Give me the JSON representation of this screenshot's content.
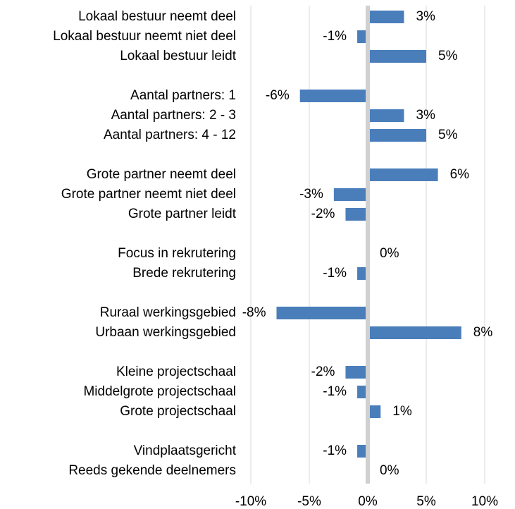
{
  "chart_data": {
    "type": "bar",
    "orientation": "horizontal",
    "categories": [
      "Lokaal bestuur neemt deel",
      "Lokaal bestuur neemt niet deel",
      "Lokaal bestuur leidt",
      null,
      "Aantal partners: 1",
      "Aantal partners: 2 - 3",
      "Aantal partners: 4 - 12",
      null,
      "Grote partner neemt deel",
      "Grote partner neemt niet deel",
      "Grote partner leidt",
      null,
      "Focus in rekrutering",
      "Brede rekrutering",
      null,
      "Ruraal werkingsgebied",
      "Urbaan werkingsgebied",
      null,
      "Kleine projectschaal",
      "Middelgrote projectschaal",
      "Grote projectschaal",
      null,
      "Vindplaatsgericht",
      "Reeds gekende deelnemers"
    ],
    "values": [
      3.1,
      -0.9,
      5.0,
      null,
      -5.8,
      3.1,
      5.0,
      null,
      6.0,
      -2.9,
      -1.9,
      null,
      0,
      -0.9,
      null,
      -7.8,
      8.0,
      null,
      -1.9,
      -0.9,
      1.1,
      null,
      -0.9,
      0
    ],
    "value_labels": [
      "3%",
      "-1%",
      "5%",
      null,
      "-6%",
      "3%",
      "5%",
      null,
      "6%",
      "-3%",
      "-2%",
      null,
      "0%",
      "-1%",
      null,
      "-8%",
      "8%",
      null,
      "-2%",
      "-1%",
      "1%",
      null,
      "-1%",
      "0%"
    ],
    "color": "#4a7ebb",
    "xlim": [
      -10,
      10
    ],
    "xticks": [
      {
        "value": -10,
        "label": "-10%"
      },
      {
        "value": -5,
        "label": "-5%"
      },
      {
        "value": 0,
        "label": "0%"
      },
      {
        "value": 5,
        "label": "5%"
      },
      {
        "value": 10,
        "label": "10%"
      }
    ],
    "grid": true
  }
}
